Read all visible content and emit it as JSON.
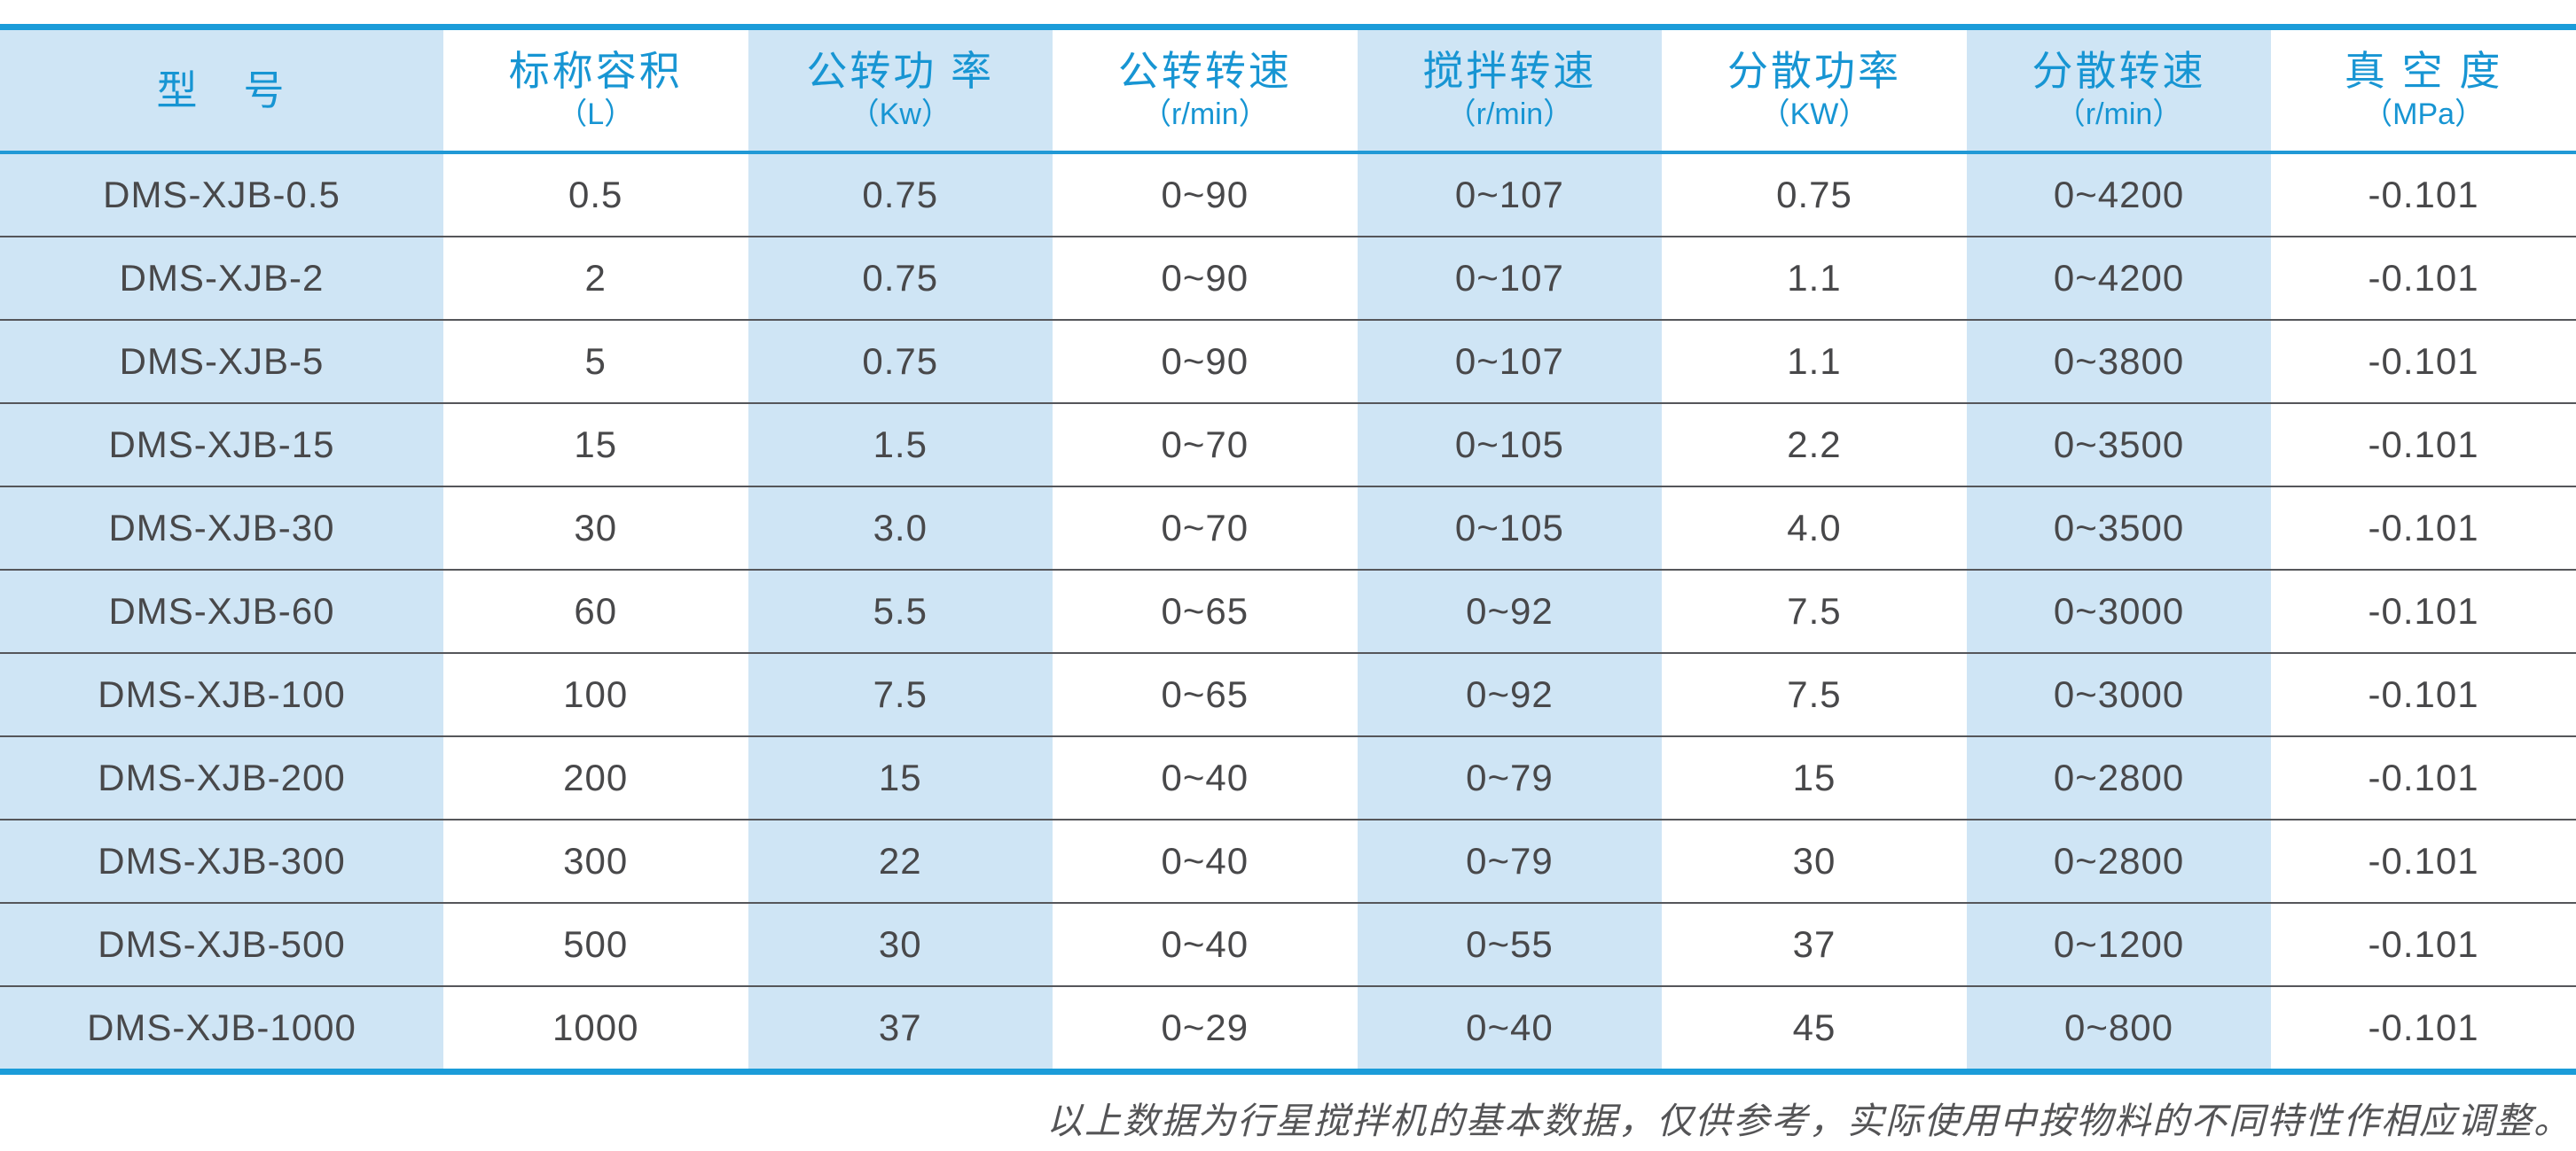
{
  "table": {
    "columns": [
      {
        "name": "型　号",
        "unit": ""
      },
      {
        "name": "标称容积",
        "unit": "（L）"
      },
      {
        "name": "公转功 率",
        "unit": "（Kw）"
      },
      {
        "name": "公转转速",
        "unit": "（r/min）"
      },
      {
        "name": "搅拌转速",
        "unit": "（r/min）"
      },
      {
        "name": "分散功率",
        "unit": "（KW）"
      },
      {
        "name": "分散转速",
        "unit": "（r/min）"
      },
      {
        "name": "真 空 度",
        "unit": "（MPa）"
      }
    ],
    "rows": [
      [
        "DMS-XJB-0.5",
        "0.5",
        "0.75",
        "0~90",
        "0~107",
        "0.75",
        "0~4200",
        "-0.101"
      ],
      [
        "DMS-XJB-2",
        "2",
        "0.75",
        "0~90",
        "0~107",
        "1.1",
        "0~4200",
        "-0.101"
      ],
      [
        "DMS-XJB-5",
        "5",
        "0.75",
        "0~90",
        "0~107",
        "1.1",
        "0~3800",
        "-0.101"
      ],
      [
        "DMS-XJB-15",
        "15",
        "1.5",
        "0~70",
        "0~105",
        "2.2",
        "0~3500",
        "-0.101"
      ],
      [
        "DMS-XJB-30",
        "30",
        "3.0",
        "0~70",
        "0~105",
        "4.0",
        "0~3500",
        "-0.101"
      ],
      [
        "DMS-XJB-60",
        "60",
        "5.5",
        "0~65",
        "0~92",
        "7.5",
        "0~3000",
        "-0.101"
      ],
      [
        "DMS-XJB-100",
        "100",
        "7.5",
        "0~65",
        "0~92",
        "7.5",
        "0~3000",
        "-0.101"
      ],
      [
        "DMS-XJB-200",
        "200",
        "15",
        "0~40",
        "0~79",
        "15",
        "0~2800",
        "-0.101"
      ],
      [
        "DMS-XJB-300",
        "300",
        "22",
        "0~40",
        "0~79",
        "30",
        "0~2800",
        "-0.101"
      ],
      [
        "DMS-XJB-500",
        "500",
        "30",
        "0~40",
        "0~55",
        "37",
        "0~1200",
        "-0.101"
      ],
      [
        "DMS-XJB-1000",
        "1000",
        "37",
        "0~29",
        "0~40",
        "45",
        "0~800",
        "-0.101"
      ]
    ]
  },
  "footer": {
    "note": "以上数据为行星搅拌机的基本数据，仅供参考，实际使用中按物料的不同特性作相应调整。"
  },
  "colors": {
    "accent_blue": "#1b9cd9",
    "header_text_blue": "#1795d3",
    "column_shade_blue": "#cfe5f5",
    "data_text": "#48484a",
    "row_separator": "#55565a",
    "footer_text": "#545456"
  }
}
